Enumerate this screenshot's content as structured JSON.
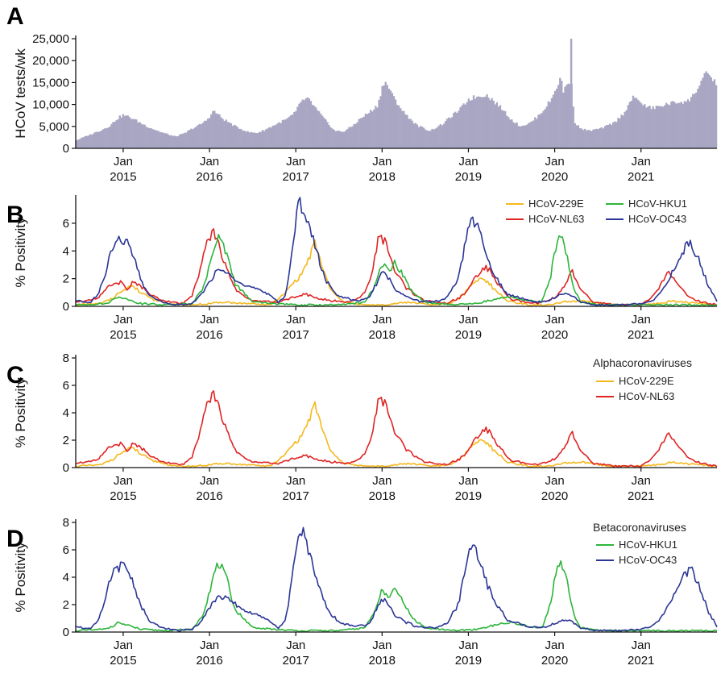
{
  "colors": {
    "bars": "#a8a6c2",
    "HCoV-229E": "#f5b81c",
    "HCoV-NL63": "#e02424",
    "HCoV-HKU1": "#2db53a",
    "HCoV-OC43": "#2b3696"
  },
  "chart_data": [
    {
      "id": "A",
      "panel_label": "A",
      "type": "bar",
      "ylabel": "HCoV tests/wk",
      "ylim": [
        0,
        25000
      ],
      "yticks": [
        0,
        5000,
        10000,
        15000,
        20000,
        25000
      ],
      "ytick_labels": [
        "0",
        "5,000",
        "10,000",
        "15,000",
        "20,000",
        "25,000"
      ],
      "xlim": [
        2014.45,
        2021.88
      ],
      "xticks": [
        2015,
        2016,
        2017,
        2018,
        2019,
        2020,
        2021
      ],
      "xtick_month": "Jan",
      "xtick_year_labels": [
        "2015",
        "2016",
        "2017",
        "2018",
        "2019",
        "2020",
        "2021"
      ],
      "x": [
        2014.45,
        2014.6,
        2014.75,
        2014.85,
        2014.93,
        2015.0,
        2015.1,
        2015.2,
        2015.3,
        2015.45,
        2015.6,
        2015.7,
        2015.8,
        2015.9,
        2015.97,
        2016.05,
        2016.15,
        2016.3,
        2016.45,
        2016.55,
        2016.65,
        2016.75,
        2016.9,
        2017.0,
        2017.05,
        2017.15,
        2017.25,
        2017.35,
        2017.45,
        2017.55,
        2017.65,
        2017.75,
        2017.85,
        2017.95,
        2018.0,
        2018.05,
        2018.12,
        2018.25,
        2018.4,
        2018.55,
        2018.7,
        2018.8,
        2018.9,
        2019.0,
        2019.1,
        2019.2,
        2019.3,
        2019.4,
        2019.5,
        2019.6,
        2019.7,
        2019.8,
        2019.9,
        2019.97,
        2020.02,
        2020.07,
        2020.1,
        2020.13,
        2020.16,
        2020.2,
        2020.23,
        2020.3,
        2020.4,
        2020.55,
        2020.7,
        2020.8,
        2020.9,
        2020.98,
        2021.05,
        2021.15,
        2021.25,
        2021.35,
        2021.45,
        2021.55,
        2021.62,
        2021.68,
        2021.74,
        2021.8,
        2021.86,
        2021.88
      ],
      "values": [
        1800,
        3000,
        4200,
        5200,
        6800,
        7600,
        6900,
        5800,
        4800,
        3600,
        2700,
        3300,
        4500,
        5500,
        6500,
        8600,
        6800,
        5000,
        3700,
        3500,
        4300,
        5300,
        6700,
        8200,
        10700,
        11200,
        8600,
        6200,
        4000,
        3800,
        5000,
        6800,
        8200,
        9800,
        14000,
        15000,
        12000,
        8200,
        5300,
        4000,
        5500,
        7300,
        8800,
        11200,
        11800,
        12300,
        10700,
        8800,
        6500,
        5100,
        5600,
        7200,
        9500,
        11500,
        14000,
        16000,
        13000,
        14200,
        15400,
        14000,
        6000,
        4500,
        4000,
        4600,
        6000,
        8000,
        11500,
        11000,
        9500,
        9200,
        9800,
        10300,
        10600,
        10800,
        12500,
        14600,
        17000,
        16000,
        15600,
        13500
      ],
      "spikes": [
        {
          "x": 2020.18,
          "value": 25000
        }
      ]
    },
    {
      "id": "B",
      "panel_label": "B",
      "type": "line",
      "ylabel": "% Positivity",
      "ylim": [
        0,
        7.8
      ],
      "yticks": [
        0,
        2,
        4,
        6
      ],
      "xlim": [
        2014.45,
        2021.88
      ],
      "xticks": [
        2015,
        2016,
        2017,
        2018,
        2019,
        2020,
        2021
      ],
      "xtick_month": "Jan",
      "xtick_year_labels": [
        "2015",
        "2016",
        "2017",
        "2018",
        "2019",
        "2020",
        "2021"
      ],
      "legend_position": "top-right",
      "series": [
        {
          "name": "HCoV-229E",
          "x": [
            2014.45,
            2014.75,
            2014.9,
            2015.0,
            2015.1,
            2015.2,
            2015.35,
            2015.6,
            2015.8,
            2016.0,
            2016.2,
            2016.4,
            2016.7,
            2016.85,
            2016.95,
            2017.05,
            2017.15,
            2017.22,
            2017.3,
            2017.4,
            2017.55,
            2017.8,
            2018.0,
            2018.3,
            2018.6,
            2018.8,
            2018.95,
            2019.05,
            2019.15,
            2019.22,
            2019.3,
            2019.45,
            2019.7,
            2019.95,
            2020.1,
            2020.3,
            2020.6,
            2021.0,
            2021.2,
            2021.35,
            2021.5,
            2021.7,
            2021.88
          ],
          "values": [
            0.1,
            0.2,
            0.7,
            1.2,
            1.5,
            1.0,
            0.5,
            0.1,
            0.1,
            0.2,
            0.3,
            0.2,
            0.1,
            0.8,
            1.5,
            2.2,
            3.4,
            4.5,
            3.0,
            1.2,
            0.3,
            0.1,
            0.1,
            0.3,
            0.1,
            0.2,
            0.9,
            1.7,
            2.0,
            1.8,
            1.2,
            0.4,
            0.1,
            0.1,
            0.3,
            0.4,
            0.1,
            0.1,
            0.2,
            0.4,
            0.3,
            0.2,
            0.1
          ]
        },
        {
          "name": "HCoV-NL63",
          "x": [
            2014.45,
            2014.7,
            2014.85,
            2014.97,
            2015.05,
            2015.12,
            2015.2,
            2015.3,
            2015.45,
            2015.7,
            2015.8,
            2015.88,
            2015.95,
            2016.0,
            2016.05,
            2016.12,
            2016.2,
            2016.3,
            2016.5,
            2016.8,
            2017.0,
            2017.1,
            2017.3,
            2017.6,
            2017.75,
            2017.85,
            2017.92,
            2017.97,
            2018.05,
            2018.15,
            2018.3,
            2018.5,
            2018.75,
            2018.95,
            2019.05,
            2019.15,
            2019.22,
            2019.35,
            2019.5,
            2019.8,
            2020.0,
            2020.08,
            2020.16,
            2020.2,
            2020.3,
            2020.45,
            2020.7,
            2021.0,
            2021.15,
            2021.25,
            2021.32,
            2021.4,
            2021.55,
            2021.7,
            2021.88
          ],
          "values": [
            0.3,
            0.6,
            1.5,
            1.7,
            1.2,
            1.8,
            1.5,
            0.9,
            0.4,
            0.2,
            0.8,
            2.5,
            4.5,
            5.0,
            5.5,
            4.2,
            2.6,
            1.2,
            0.4,
            0.3,
            0.7,
            0.9,
            0.5,
            0.3,
            0.6,
            1.7,
            3.5,
            5.3,
            4.5,
            2.5,
            1.2,
            0.4,
            0.2,
            0.8,
            1.8,
            2.6,
            2.8,
            1.5,
            0.5,
            0.2,
            0.6,
            1.2,
            2.0,
            2.6,
            1.2,
            0.3,
            0.1,
            0.1,
            0.8,
            1.8,
            2.5,
            1.8,
            0.7,
            0.3,
            0.1
          ]
        },
        {
          "name": "HCoV-HKU1",
          "x": [
            2014.45,
            2014.8,
            2014.95,
            2015.05,
            2015.2,
            2015.5,
            2015.8,
            2015.92,
            2016.0,
            2016.07,
            2016.12,
            2016.2,
            2016.3,
            2016.5,
            2017.0,
            2017.5,
            2017.8,
            2017.92,
            2018.0,
            2018.05,
            2018.1,
            2018.15,
            2018.25,
            2018.35,
            2018.5,
            2018.8,
            2019.1,
            2019.3,
            2019.5,
            2019.7,
            2019.85,
            2019.95,
            2020.02,
            2020.08,
            2020.15,
            2020.22,
            2020.3,
            2020.5,
            2021.0,
            2021.5,
            2021.88
          ],
          "values": [
            0.1,
            0.2,
            0.7,
            0.5,
            0.2,
            0.1,
            0.2,
            1.2,
            3.0,
            4.5,
            5.0,
            3.8,
            1.6,
            0.3,
            0.1,
            0.1,
            0.3,
            1.5,
            3.2,
            2.8,
            2.6,
            3.2,
            2.2,
            1.0,
            0.3,
            0.1,
            0.2,
            0.5,
            0.7,
            0.4,
            0.3,
            2.0,
            4.6,
            5.0,
            3.5,
            1.3,
            0.3,
            0.1,
            0.1,
            0.1,
            0.1
          ]
        },
        {
          "name": "HCoV-OC43",
          "x": [
            2014.45,
            2014.55,
            2014.62,
            2014.7,
            2014.78,
            2014.85,
            2014.9,
            2014.95,
            2015.0,
            2015.05,
            2015.12,
            2015.2,
            2015.3,
            2015.45,
            2015.65,
            2015.8,
            2015.9,
            2016.0,
            2016.08,
            2016.15,
            2016.25,
            2016.35,
            2016.45,
            2016.6,
            2016.72,
            2016.8,
            2016.88,
            2016.95,
            2017.0,
            2017.04,
            2017.1,
            2017.17,
            2017.25,
            2017.35,
            2017.5,
            2017.7,
            2017.85,
            2017.95,
            2018.0,
            2018.08,
            2018.15,
            2018.25,
            2018.4,
            2018.6,
            2018.75,
            2018.88,
            2018.95,
            2019.0,
            2019.05,
            2019.12,
            2019.2,
            2019.3,
            2019.45,
            2019.7,
            2019.85,
            2020.0,
            2020.1,
            2020.2,
            2020.3,
            2020.5,
            2020.8,
            2021.0,
            2021.15,
            2021.25,
            2021.35,
            2021.45,
            2021.5,
            2021.58,
            2021.68,
            2021.78,
            2021.88
          ],
          "values": [
            0.4,
            0.3,
            0.3,
            0.8,
            2.0,
            3.8,
            4.5,
            4.7,
            4.8,
            4.6,
            3.5,
            2.0,
            0.8,
            0.3,
            0.1,
            0.2,
            0.8,
            1.8,
            2.5,
            2.6,
            2.2,
            1.8,
            1.5,
            1.1,
            0.7,
            0.3,
            0.8,
            3.5,
            6.0,
            7.6,
            7.0,
            5.5,
            3.8,
            1.8,
            0.7,
            0.4,
            0.6,
            1.8,
            2.5,
            2.0,
            1.2,
            0.8,
            0.4,
            0.3,
            0.6,
            2.0,
            4.0,
            6.0,
            6.2,
            5.5,
            3.8,
            2.2,
            0.9,
            0.4,
            0.3,
            0.6,
            0.9,
            0.8,
            0.3,
            0.1,
            0.1,
            0.2,
            0.5,
            1.2,
            2.3,
            3.5,
            4.2,
            4.6,
            3.2,
            1.5,
            0.4
          ]
        }
      ]
    },
    {
      "id": "C",
      "panel_label": "C",
      "type": "line",
      "ylabel": "% Positivity",
      "legend_title": "Alphacoronaviruses",
      "ylim": [
        0,
        8
      ],
      "yticks": [
        0,
        2,
        4,
        6,
        8
      ],
      "xlim": [
        2014.45,
        2021.88
      ],
      "xticks": [
        2015,
        2016,
        2017,
        2018,
        2019,
        2020,
        2021
      ],
      "xtick_month": "Jan",
      "xtick_year_labels": [
        "2015",
        "2016",
        "2017",
        "2018",
        "2019",
        "2020",
        "2021"
      ],
      "legend_position": "top-right",
      "series_refs": [
        "HCoV-229E",
        "HCoV-NL63"
      ]
    },
    {
      "id": "D",
      "panel_label": "D",
      "type": "line",
      "ylabel": "% Positivity",
      "legend_title": "Betacoronaviruses",
      "ylim": [
        0,
        8
      ],
      "yticks": [
        0,
        2,
        4,
        6,
        8
      ],
      "xlim": [
        2014.45,
        2021.88
      ],
      "xticks": [
        2015,
        2016,
        2017,
        2018,
        2019,
        2020,
        2021
      ],
      "xtick_month": "Jan",
      "xtick_year_labels": [
        "2015",
        "2016",
        "2017",
        "2018",
        "2019",
        "2020",
        "2021"
      ],
      "legend_position": "top-right",
      "series_refs": [
        "HCoV-HKU1",
        "HCoV-OC43"
      ]
    }
  ]
}
